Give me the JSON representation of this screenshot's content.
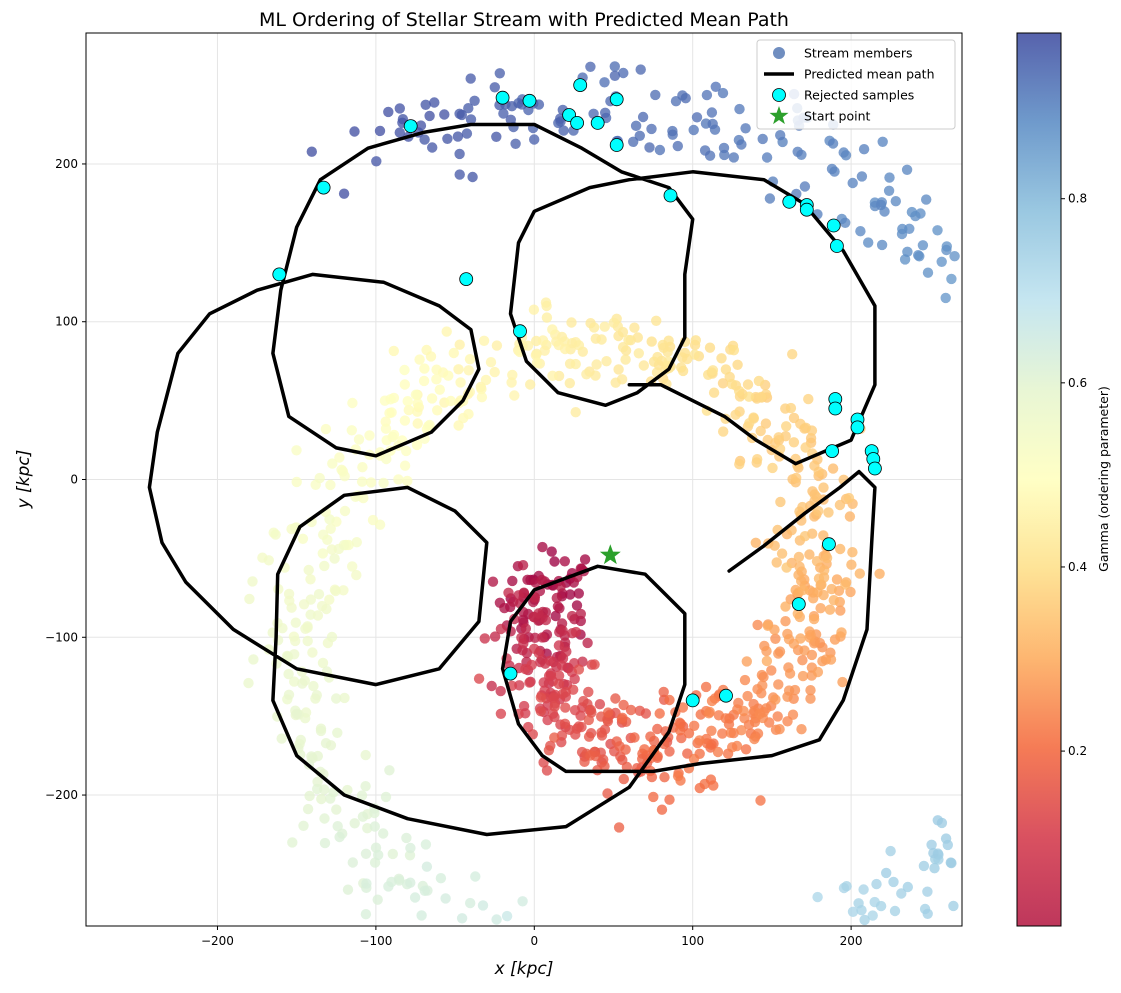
{
  "chart_data": {
    "type": "scatter",
    "title": "ML Ordering of Stellar Stream with Predicted Mean Path",
    "xlabel": "x [kpc]",
    "ylabel": "y [kpc]",
    "xlim": [
      -283,
      270
    ],
    "ylim": [
      -283,
      283
    ],
    "xticks": [
      -200,
      -100,
      0,
      100,
      200
    ],
    "yticks": [
      -200,
      -100,
      0,
      100,
      200
    ],
    "xtick_labels": [
      "−200",
      "−100",
      "0",
      "100",
      "200"
    ],
    "ytick_labels": [
      "−200",
      "−100",
      "0",
      "100",
      "200"
    ],
    "grid": true,
    "legend_location": "top-right",
    "legend": [
      {
        "label": "Stream members",
        "marker": "circle",
        "color": "#4c72b0"
      },
      {
        "label": "Predicted mean path",
        "marker": "line",
        "color": "#000000"
      },
      {
        "label": "Rejected samples",
        "marker": "circle",
        "color": "#00ffff"
      },
      {
        "label": "Start point",
        "marker": "star",
        "color": "#2ca02c"
      }
    ],
    "colorbar": {
      "label": "Gamma (ordering parameter)",
      "colormap": "Spectral",
      "range": [
        0.01,
        0.98
      ],
      "ticks": [
        0.2,
        0.4,
        0.6,
        0.8
      ],
      "tick_labels": [
        "0.2",
        "0.4",
        "0.6",
        "0.8"
      ]
    },
    "series": [
      {
        "name": "Stream members",
        "description_type": "spiral_band",
        "gamma_range": [
          0.0,
          1.0
        ],
        "spiral": {
          "center": [
            55,
            -80
          ],
          "start_angle_deg": 160,
          "end_angle_deg": 840,
          "start_radius": 40,
          "end_radius": 330,
          "band_width_kpc": 30
        }
      },
      {
        "name": "Predicted mean path",
        "points": [
          [
            123,
            -58
          ],
          [
            145,
            -42
          ],
          [
            170,
            -22
          ],
          [
            193,
            -5
          ],
          [
            205,
            5
          ],
          [
            215,
            -5
          ],
          [
            213,
            -40
          ],
          [
            210,
            -95
          ],
          [
            195,
            -140
          ],
          [
            180,
            -165
          ],
          [
            150,
            -175
          ],
          [
            105,
            -180
          ],
          [
            75,
            -185
          ],
          [
            20,
            -185
          ],
          [
            5,
            -175
          ],
          [
            -10,
            -155
          ],
          [
            -20,
            -120
          ],
          [
            -15,
            -90
          ],
          [
            0,
            -70
          ],
          [
            40,
            -55
          ],
          [
            70,
            -60
          ],
          [
            95,
            -85
          ],
          [
            95,
            -130
          ],
          [
            85,
            -160
          ],
          [
            60,
            -195
          ],
          [
            20,
            -220
          ],
          [
            -30,
            -225
          ],
          [
            -80,
            -215
          ],
          [
            -120,
            -200
          ],
          [
            -150,
            -175
          ],
          [
            -165,
            -140
          ],
          [
            -163,
            -100
          ],
          [
            -162,
            -60
          ],
          [
            -148,
            -30
          ],
          [
            -120,
            -10
          ],
          [
            -80,
            -5
          ],
          [
            -50,
            -20
          ],
          [
            -30,
            -40
          ],
          [
            -35,
            -90
          ],
          [
            -60,
            -120
          ],
          [
            -100,
            -130
          ],
          [
            -150,
            -120
          ],
          [
            -190,
            -95
          ],
          [
            -220,
            -65
          ],
          [
            -235,
            -40
          ],
          [
            -243,
            -5
          ],
          [
            -238,
            30
          ],
          [
            -225,
            80
          ],
          [
            -205,
            105
          ],
          [
            -175,
            120
          ],
          [
            -140,
            130
          ],
          [
            -95,
            125
          ],
          [
            -60,
            110
          ],
          [
            -40,
            95
          ],
          [
            -35,
            70
          ],
          [
            -45,
            50
          ],
          [
            -65,
            30
          ],
          [
            -100,
            15
          ],
          [
            -125,
            20
          ],
          [
            -155,
            40
          ],
          [
            -165,
            80
          ],
          [
            -160,
            120
          ],
          [
            -150,
            160
          ],
          [
            -135,
            190
          ],
          [
            -105,
            210
          ],
          [
            -70,
            220
          ],
          [
            -40,
            225
          ],
          [
            0,
            225
          ],
          [
            30,
            210
          ],
          [
            55,
            195
          ],
          [
            85,
            185
          ],
          [
            100,
            165
          ],
          [
            95,
            130
          ],
          [
            95,
            90
          ],
          [
            85,
            70
          ],
          [
            65,
            55
          ],
          [
            45,
            47
          ],
          [
            15,
            55
          ],
          [
            -5,
            75
          ],
          [
            -15,
            105
          ],
          [
            -10,
            150
          ],
          [
            0,
            170
          ],
          [
            35,
            185
          ],
          [
            60,
            190
          ],
          [
            100,
            195
          ],
          [
            145,
            190
          ],
          [
            170,
            175
          ],
          [
            195,
            145
          ],
          [
            215,
            110
          ],
          [
            215,
            60
          ],
          [
            200,
            25
          ],
          [
            165,
            10
          ],
          [
            140,
            25
          ],
          [
            120,
            40
          ],
          [
            80,
            60
          ],
          [
            60,
            60
          ]
        ]
      },
      {
        "name": "Rejected samples",
        "points": [
          [
            29,
            250
          ],
          [
            -20,
            242
          ],
          [
            -3,
            240
          ],
          [
            52,
            241
          ],
          [
            22,
            231
          ],
          [
            27,
            226
          ],
          [
            40,
            226
          ],
          [
            -78,
            224
          ],
          [
            52,
            212
          ],
          [
            -133,
            185
          ],
          [
            86,
            180
          ],
          [
            161,
            176
          ],
          [
            172,
            174
          ],
          [
            172,
            171
          ],
          [
            189,
            161
          ],
          [
            191,
            148
          ],
          [
            -161,
            130
          ],
          [
            -43,
            127
          ],
          [
            -9,
            94
          ],
          [
            190,
            51
          ],
          [
            190,
            45
          ],
          [
            204,
            38
          ],
          [
            204,
            33
          ],
          [
            213,
            18
          ],
          [
            214,
            13
          ],
          [
            215,
            7
          ],
          [
            188,
            18
          ],
          [
            186,
            -41
          ],
          [
            167,
            -79
          ],
          [
            -15,
            -123
          ],
          [
            100,
            -140
          ],
          [
            121,
            -137
          ]
        ]
      },
      {
        "name": "Start point",
        "points": [
          [
            48,
            -48
          ]
        ]
      }
    ]
  }
}
